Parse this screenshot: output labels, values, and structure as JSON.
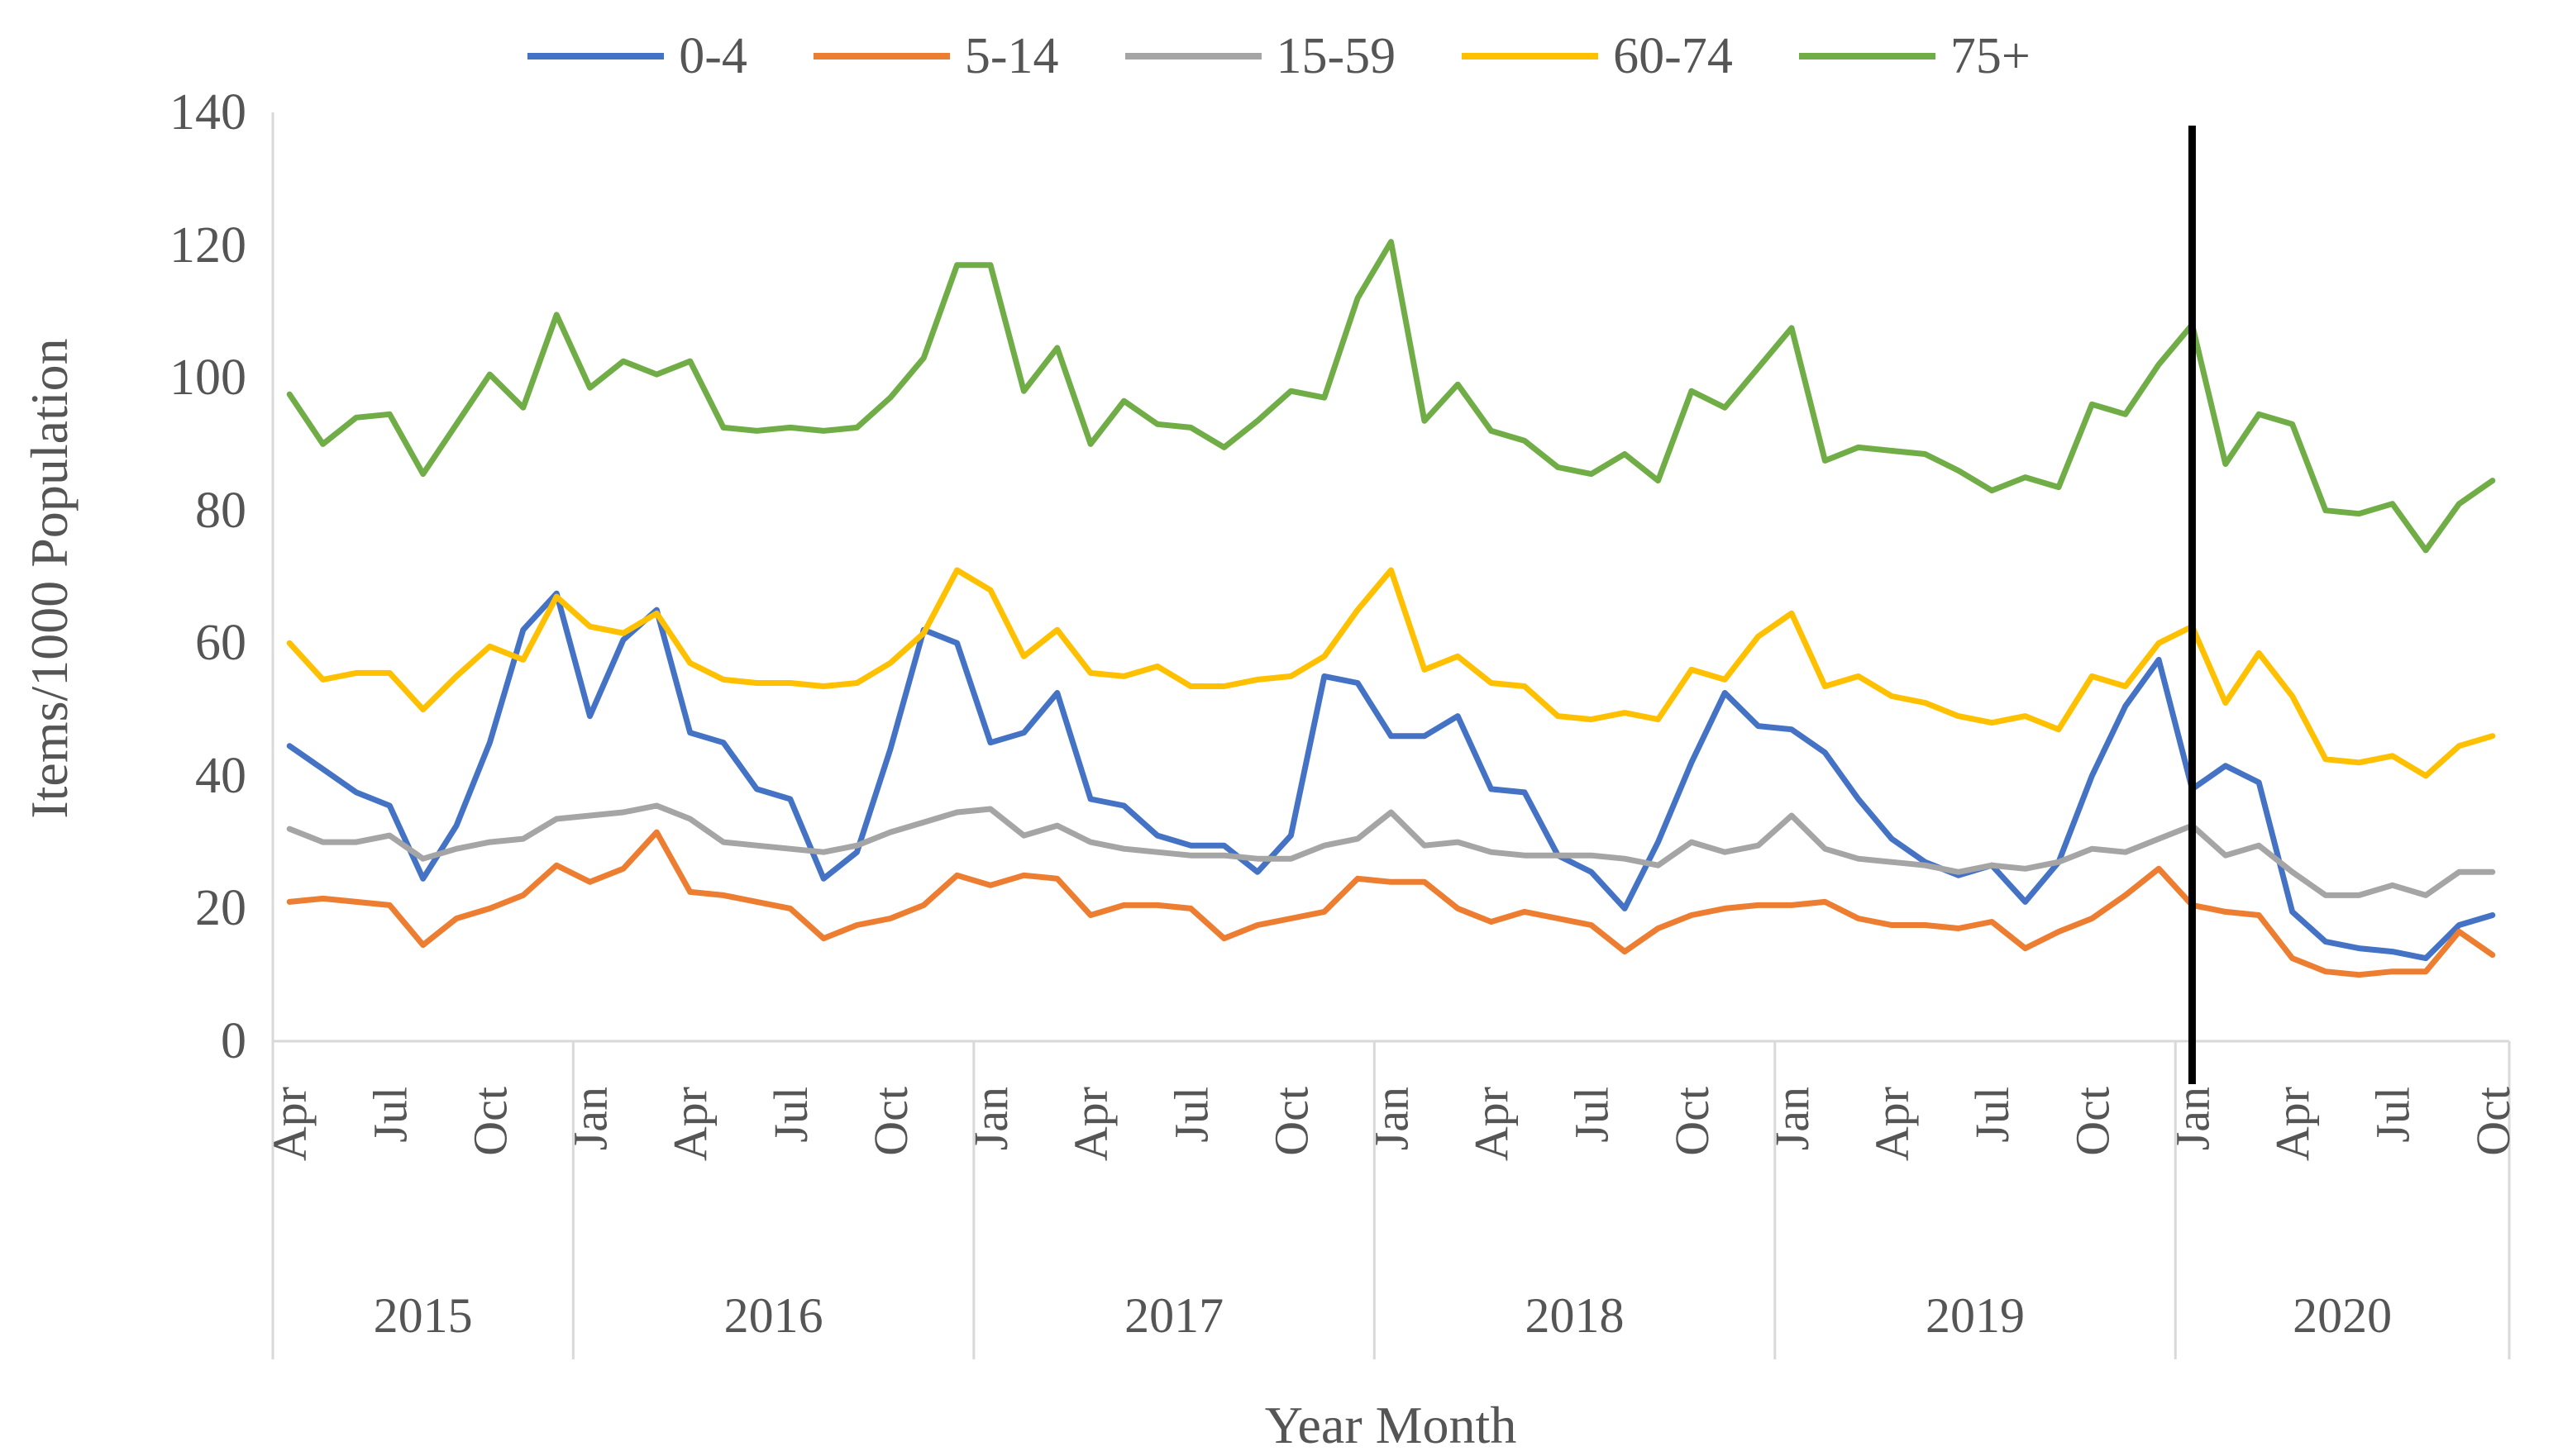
{
  "chart_data": {
    "type": "line",
    "title": "",
    "xlabel": "Year Month",
    "ylabel": "Items/1000 Population",
    "ylim": [
      0,
      140
    ],
    "yticks": [
      0,
      20,
      40,
      60,
      80,
      100,
      120,
      140
    ],
    "grid": "off",
    "legend_position": "top-center",
    "x_tick_label_interval": 3,
    "axis_color": "#D9D9D9",
    "text_color": "#555555",
    "annotation_line": {
      "type": "vline",
      "at_category": "Jan 2020",
      "color": "#000000"
    },
    "year_bands": [
      {
        "label": "2015",
        "months": 9
      },
      {
        "label": "2016",
        "months": 12
      },
      {
        "label": "2017",
        "months": 12
      },
      {
        "label": "2018",
        "months": 12
      },
      {
        "label": "2019",
        "months": 12
      },
      {
        "label": "2020",
        "months": 10
      }
    ],
    "categories": [
      "Apr 2015",
      "May 2015",
      "Jun 2015",
      "Jul 2015",
      "Aug 2015",
      "Sep 2015",
      "Oct 2015",
      "Nov 2015",
      "Dec 2015",
      "Jan 2016",
      "Feb 2016",
      "Mar 2016",
      "Apr 2016",
      "May 2016",
      "Jun 2016",
      "Jul 2016",
      "Aug 2016",
      "Sep 2016",
      "Oct 2016",
      "Nov 2016",
      "Dec 2016",
      "Jan 2017",
      "Feb 2017",
      "Mar 2017",
      "Apr 2017",
      "May 2017",
      "Jun 2017",
      "Jul 2017",
      "Aug 2017",
      "Sep 2017",
      "Oct 2017",
      "Nov 2017",
      "Dec 2017",
      "Jan 2018",
      "Feb 2018",
      "Mar 2018",
      "Apr 2018",
      "May 2018",
      "Jun 2018",
      "Jul 2018",
      "Aug 2018",
      "Sep 2018",
      "Oct 2018",
      "Nov 2018",
      "Dec 2018",
      "Jan 2019",
      "Feb 2019",
      "Mar 2019",
      "Apr 2019",
      "May 2019",
      "Jun 2019",
      "Jul 2019",
      "Aug 2019",
      "Sep 2019",
      "Oct 2019",
      "Nov 2019",
      "Dec 2019",
      "Jan 2020",
      "Feb 2020",
      "Mar 2020",
      "Apr 2020",
      "May 2020",
      "Jun 2020",
      "Jul 2020",
      "Aug 2020",
      "Sep 2020",
      "Oct 2020"
    ],
    "series": [
      {
        "name": "0-4",
        "color": "#4472C4",
        "values": [
          44.5,
          41,
          37.5,
          35.5,
          24.5,
          32.5,
          45,
          62,
          67.5,
          49,
          60.5,
          65,
          46.5,
          45,
          38,
          36.5,
          24.5,
          28.5,
          44,
          62,
          60,
          45,
          46.5,
          52.5,
          36.5,
          35.5,
          31,
          29.5,
          29.5,
          25.5,
          31,
          55,
          54,
          46,
          46,
          49,
          38,
          37.5,
          28,
          25.5,
          20,
          30,
          42,
          52.5,
          47.5,
          47,
          43.5,
          36.5,
          30.5,
          27,
          25,
          26.5,
          21,
          27,
          40,
          50.5,
          57.5,
          38,
          41.5,
          39,
          19.5,
          15,
          14,
          13.5,
          12.5,
          17.5,
          19
        ]
      },
      {
        "name": "5-14",
        "color": "#ED7D31",
        "values": [
          21,
          21.5,
          21,
          20.5,
          14.5,
          18.5,
          20,
          22,
          26.5,
          24,
          26,
          31.5,
          22.5,
          22,
          21,
          20,
          15.5,
          17.5,
          18.5,
          20.5,
          25,
          23.5,
          25,
          24.5,
          19,
          20.5,
          20.5,
          20,
          15.5,
          17.5,
          18.5,
          19.5,
          24.5,
          24,
          24,
          20,
          18,
          19.5,
          18.5,
          17.5,
          13.5,
          17,
          19,
          20,
          20.5,
          20.5,
          21,
          18.5,
          17.5,
          17.5,
          17,
          18,
          14,
          16.5,
          18.5,
          22,
          26,
          20.5,
          19.5,
          19,
          12.5,
          10.5,
          10,
          10.5,
          10.5,
          16.5,
          13
        ]
      },
      {
        "name": "15-59",
        "color": "#A5A5A5",
        "values": [
          32,
          30,
          30,
          31,
          27.5,
          29,
          30,
          30.5,
          33.5,
          34,
          34.5,
          35.5,
          33.5,
          30,
          29.5,
          29,
          28.5,
          29.5,
          31.5,
          33,
          34.5,
          35,
          31,
          32.5,
          30,
          29,
          28.5,
          28,
          28,
          27.5,
          27.5,
          29.5,
          30.5,
          34.5,
          29.5,
          30,
          28.5,
          28,
          28,
          28,
          27.5,
          26.5,
          30,
          28.5,
          29.5,
          34,
          29,
          27.5,
          27,
          26.5,
          25.5,
          26.5,
          26,
          27,
          29,
          28.5,
          30.5,
          32.5,
          28,
          29.5,
          25.5,
          22,
          22,
          23.5,
          22,
          25.5,
          25.5
        ]
      },
      {
        "name": "60-74",
        "color": "#FFC000",
        "values": [
          60,
          54.5,
          55.5,
          55.5,
          50,
          55,
          59.5,
          57.5,
          67,
          62.5,
          61.5,
          64.5,
          57,
          54.5,
          54,
          54,
          53.5,
          54,
          57,
          61.5,
          71,
          68,
          58,
          62,
          55.5,
          55,
          56.5,
          53.5,
          53.5,
          54.5,
          55,
          58,
          65,
          71,
          56,
          58,
          54,
          53.5,
          49,
          48.5,
          49.5,
          48.5,
          56,
          54.5,
          61,
          64.5,
          53.5,
          55,
          52,
          51,
          49,
          48,
          49,
          47,
          55,
          53.5,
          60,
          62.5,
          51,
          58.5,
          52,
          42.5,
          42,
          43,
          40,
          44.5,
          46
        ]
      },
      {
        "name": "75+",
        "color": "#70AD47",
        "values": [
          97.5,
          90,
          94,
          94.5,
          85.5,
          93,
          100.5,
          95.5,
          109.5,
          98.5,
          102.5,
          100.5,
          102.5,
          92.5,
          92,
          92.5,
          92,
          92.5,
          97,
          103,
          117,
          117,
          98,
          104.5,
          90,
          96.5,
          93,
          92.5,
          89.5,
          93.5,
          98,
          97,
          112,
          120.5,
          93.5,
          99,
          92,
          90.5,
          86.5,
          85.5,
          88.5,
          84.5,
          98,
          95.5,
          101.5,
          107.5,
          87.5,
          89.5,
          89,
          88.5,
          86,
          83,
          85,
          83.5,
          96,
          94.5,
          102,
          108,
          87,
          94.5,
          93,
          80,
          79.5,
          81,
          74,
          81,
          84.5
        ]
      }
    ]
  }
}
